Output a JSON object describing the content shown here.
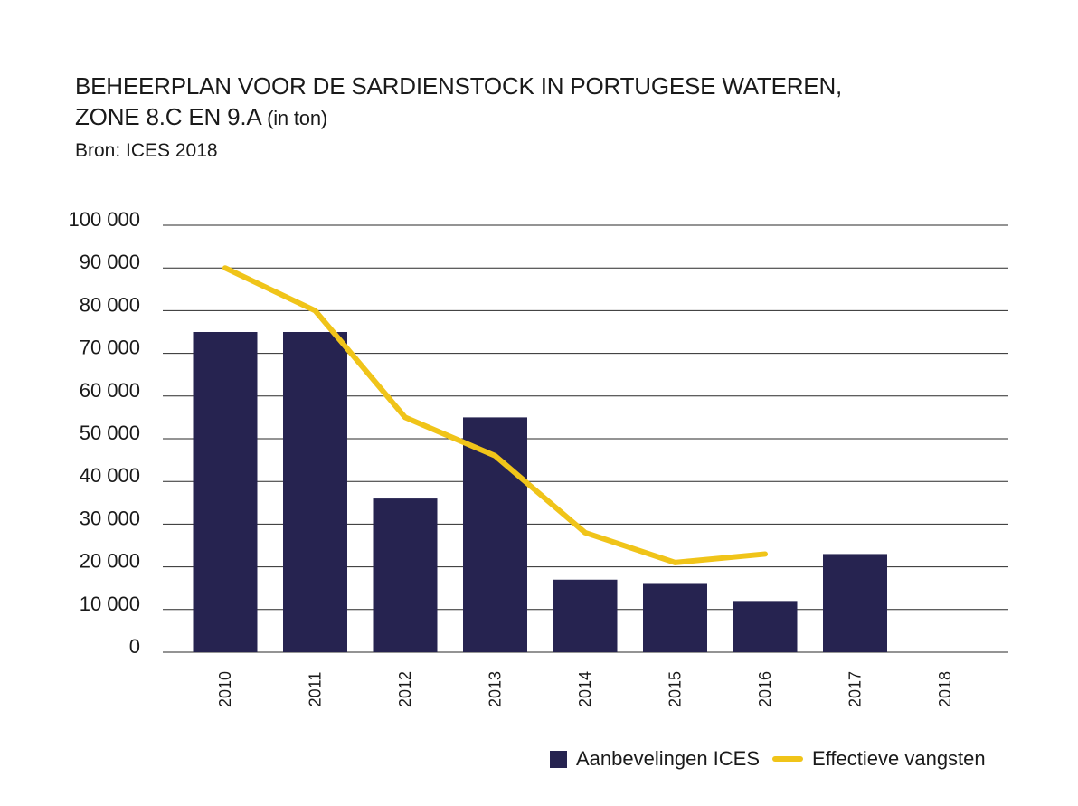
{
  "header": {
    "title_line1": "BEHEERPLAN VOOR DE SARDIENSTOCK IN PORTUGESE WATEREN,",
    "title_line2": "ZONE 8.C EN 9.A",
    "title_unit": "(in ton)",
    "source": "Bron: ICES 2018"
  },
  "chart_data": {
    "type": "bar",
    "categories": [
      "2010",
      "2011",
      "2012",
      "2013",
      "2014",
      "2015",
      "2016",
      "2017",
      "2018"
    ],
    "series": [
      {
        "name": "Aanbevelingen ICES",
        "type": "bar",
        "color": "#262350",
        "values": [
          75000,
          75000,
          36000,
          55000,
          17000,
          16000,
          12000,
          23000,
          null
        ]
      },
      {
        "name": "Effectieve vangsten",
        "type": "line",
        "color": "#f0c419",
        "values": [
          90000,
          80000,
          55000,
          46000,
          28000,
          21000,
          23000,
          null,
          null
        ]
      }
    ],
    "ylim": [
      0,
      100000
    ],
    "yticks": [
      0,
      10000,
      20000,
      30000,
      40000,
      50000,
      60000,
      70000,
      80000,
      90000,
      100000
    ],
    "ytick_labels": [
      "0",
      "10 000",
      "20 000",
      "30 000",
      "40 000",
      "50 000",
      "60 000",
      "70 000",
      "80 000",
      "90 000",
      "100 000"
    ],
    "grid": true,
    "legend_position": "bottom-right"
  },
  "legend": {
    "bar_label": "Aanbevelingen ICES",
    "line_label": "Effectieve vangsten"
  }
}
